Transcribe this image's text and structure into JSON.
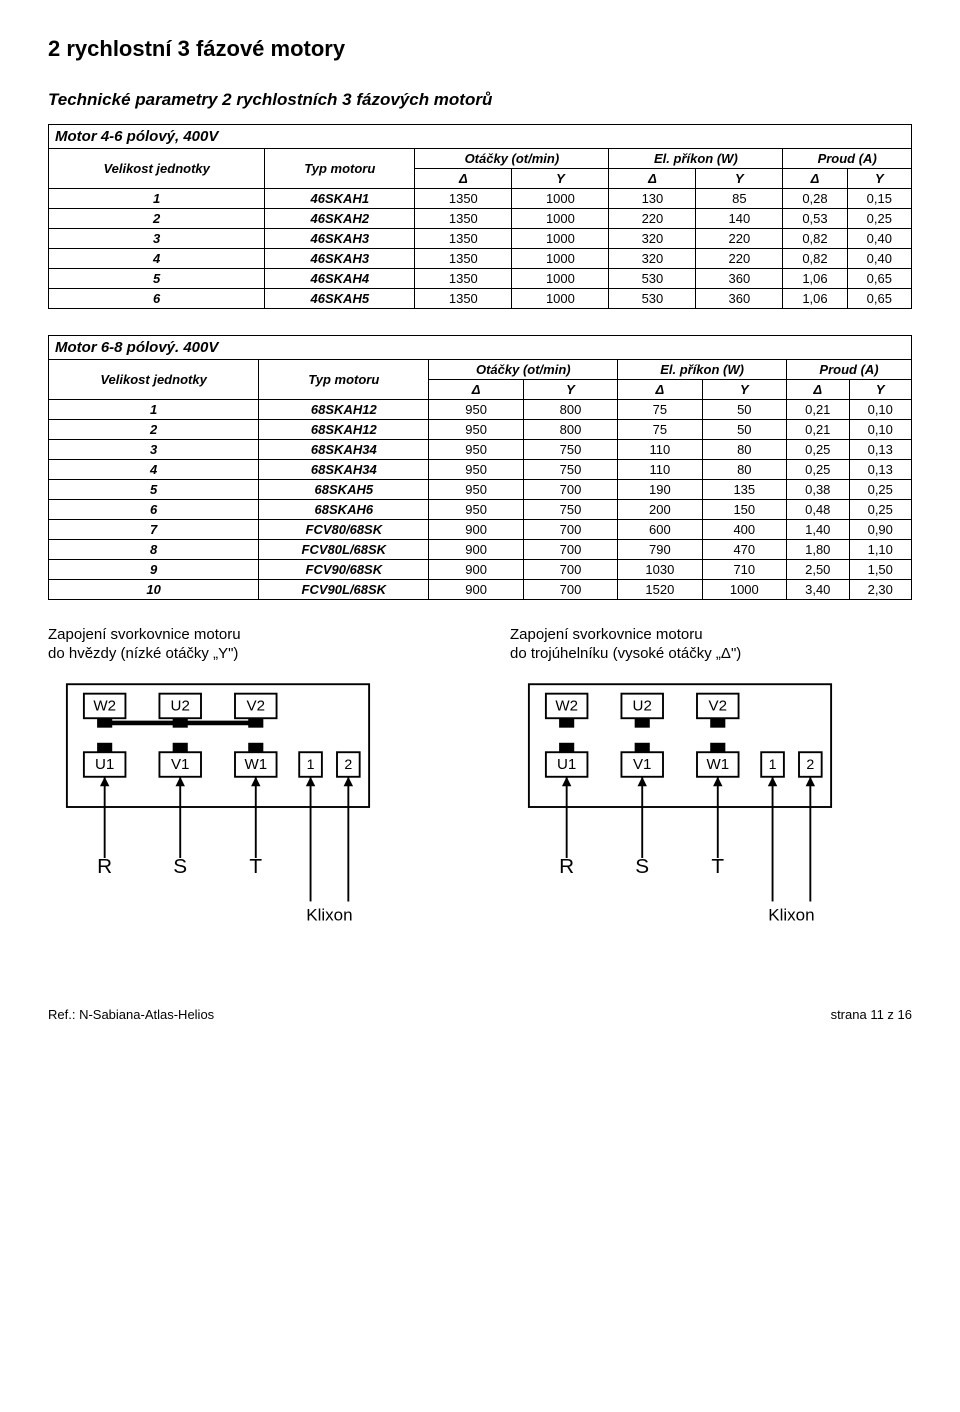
{
  "page_title": "2 rychlostní 3 fázové motory",
  "section_caption": "Technické parametry 2 rychlostních 3 fázových motorů",
  "table1": {
    "title": "Motor 4-6 pólový, 400V",
    "head": {
      "col_velikost": "Velikost jednotky",
      "col_typ": "Typ motoru",
      "grp_otacky": "Otáčky (ot/min)",
      "grp_prikon": "El. příkon (W)",
      "grp_proud": "Proud (A)",
      "delta": "Δ",
      "y": "Y"
    },
    "rows": [
      [
        "1",
        "46SKAH1",
        "1350",
        "1000",
        "130",
        "85",
        "0,28",
        "0,15"
      ],
      [
        "2",
        "46SKAH2",
        "1350",
        "1000",
        "220",
        "140",
        "0,53",
        "0,25"
      ],
      [
        "3",
        "46SKAH3",
        "1350",
        "1000",
        "320",
        "220",
        "0,82",
        "0,40"
      ],
      [
        "4",
        "46SKAH3",
        "1350",
        "1000",
        "320",
        "220",
        "0,82",
        "0,40"
      ],
      [
        "5",
        "46SKAH4",
        "1350",
        "1000",
        "530",
        "360",
        "1,06",
        "0,65"
      ],
      [
        "6",
        "46SKAH5",
        "1350",
        "1000",
        "530",
        "360",
        "1,06",
        "0,65"
      ]
    ]
  },
  "table2": {
    "title": "Motor 6-8 pólový. 400V",
    "head": {
      "col_velikost": "Velikost jednotky",
      "col_typ": "Typ motoru",
      "grp_otacky": "Otáčky (ot/min)",
      "grp_prikon": "El. příkon (W)",
      "grp_proud": "Proud (A)",
      "delta": "Δ",
      "y": "Y"
    },
    "rows": [
      [
        "1",
        "68SKAH12",
        "950",
        "800",
        "75",
        "50",
        "0,21",
        "0,10"
      ],
      [
        "2",
        "68SKAH12",
        "950",
        "800",
        "75",
        "50",
        "0,21",
        "0,10"
      ],
      [
        "3",
        "68SKAH34",
        "950",
        "750",
        "110",
        "80",
        "0,25",
        "0,13"
      ],
      [
        "4",
        "68SKAH34",
        "950",
        "750",
        "110",
        "80",
        "0,25",
        "0,13"
      ],
      [
        "5",
        "68SKAH5",
        "950",
        "700",
        "190",
        "135",
        "0,38",
        "0,25"
      ],
      [
        "6",
        "68SKAH6",
        "950",
        "750",
        "200",
        "150",
        "0,48",
        "0,25"
      ],
      [
        "7",
        "FCV80/68SK",
        "900",
        "700",
        "600",
        "400",
        "1,40",
        "0,90"
      ],
      [
        "8",
        "FCV80L/68SK",
        "900",
        "700",
        "790",
        "470",
        "1,80",
        "1,10"
      ],
      [
        "9",
        "FCV90/68SK",
        "900",
        "700",
        "1030",
        "710",
        "2,50",
        "1,50"
      ],
      [
        "10",
        "FCV90L/68SK",
        "900",
        "700",
        "1520",
        "1000",
        "3,40",
        "2,30"
      ]
    ]
  },
  "diagram_left": {
    "caption1": "Zapojení svorkovnice motoru",
    "caption2": "do hvězdy (nízké otáčky „Y\")",
    "top": [
      "W2",
      "U2",
      "V2"
    ],
    "mid": [
      "U1",
      "V1",
      "W1"
    ],
    "nums": [
      "1",
      "2"
    ],
    "bottom": [
      "R",
      "S",
      "T"
    ],
    "klixon": "Klixon",
    "linked_top": true
  },
  "diagram_right": {
    "caption1": "Zapojení svorkovnice motoru",
    "caption2": "do trojúhelníku (vysoké otáčky „Δ\")",
    "top": [
      "W2",
      "U2",
      "V2"
    ],
    "mid": [
      "U1",
      "V1",
      "W1"
    ],
    "nums": [
      "1",
      "2"
    ],
    "bottom": [
      "R",
      "S",
      "T"
    ],
    "klixon": "Klixon",
    "linked_top": false
  },
  "footer": {
    "left": "Ref.: N-Sabiana-Atlas-Helios",
    "right_prefix": "strana ",
    "right_page": "11",
    "right_suffix": " z 16"
  },
  "colors": {
    "text": "#000000",
    "border": "#000000",
    "bg": "#ffffff"
  }
}
